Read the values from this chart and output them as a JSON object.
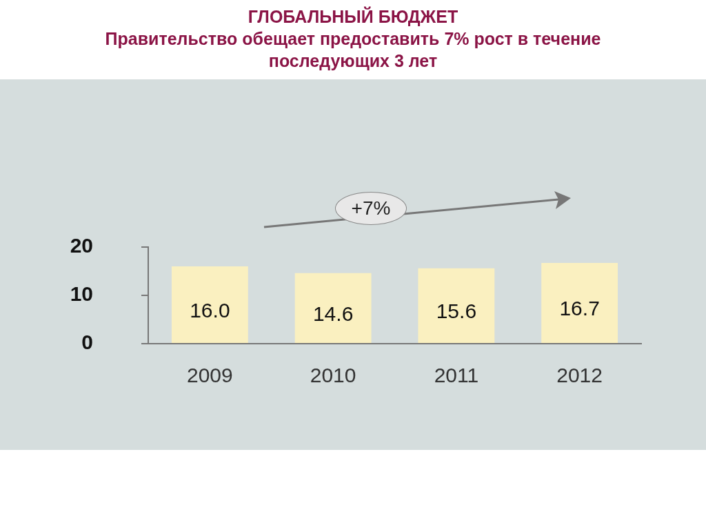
{
  "chart_data": {
    "type": "bar",
    "title": "ГЛОБАЛЬНЫЙ БЮДЖЕТ",
    "subtitle": "Правительство обещает предоставить 7% рост в течение последующих 3 лет",
    "categories": [
      "2009",
      "2010",
      "2011",
      "2012"
    ],
    "values": [
      16.0,
      14.6,
      15.6,
      16.7
    ],
    "value_labels": [
      "16.0",
      "14.6",
      "15.6",
      "16.7"
    ],
    "color": "#faf0c0",
    "ylim": [
      0,
      20
    ],
    "yticks": [
      0,
      10,
      20
    ],
    "grid": false,
    "annotations": [
      "+7%"
    ]
  }
}
